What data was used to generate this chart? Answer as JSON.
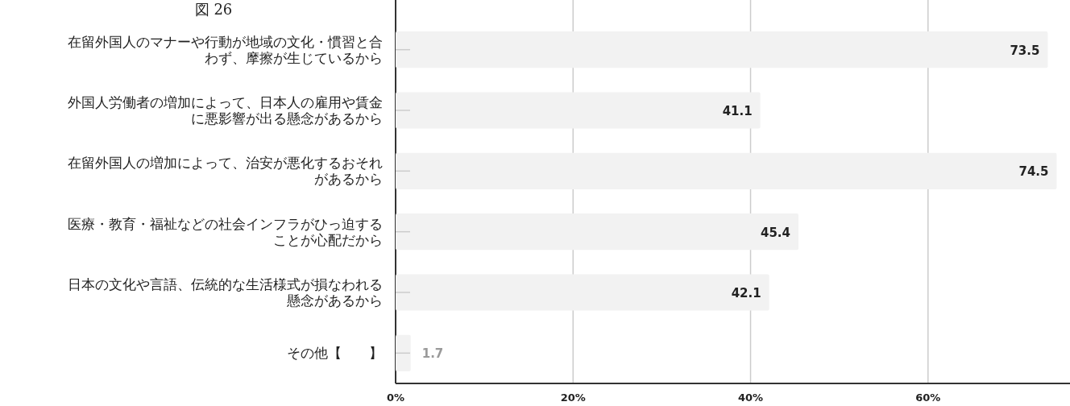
{
  "chart_data": {
    "type": "bar",
    "orientation": "horizontal",
    "title": "図 26",
    "categories": [
      "在留外国人のマナーや行動が地域の文化・慣習と合わず、摩擦が生じているから",
      "外国人労働者の増加によって、日本人の雇用や賃金に悪影響が出る懸念があるから",
      "在留外国人の増加によって、治安が悪化するおそれがあるから",
      "医療・教育・福祉などの社会インフラがひっ迫することが心配だから",
      "日本の文化や言語、伝統的な生活様式が損なわれる懸念があるから",
      "その他【　　】"
    ],
    "values": [
      73.5,
      41.1,
      74.5,
      45.4,
      42.1,
      1.7
    ],
    "color": "#f2f2f2",
    "xlim": [
      0,
      76
    ],
    "xticks": [
      {
        "value": 0,
        "label": "0%"
      },
      {
        "value": 20,
        "label": "20%"
      },
      {
        "value": 40,
        "label": "40%"
      },
      {
        "value": 60,
        "label": "60%"
      }
    ],
    "grid": "x",
    "data_labels": true
  }
}
